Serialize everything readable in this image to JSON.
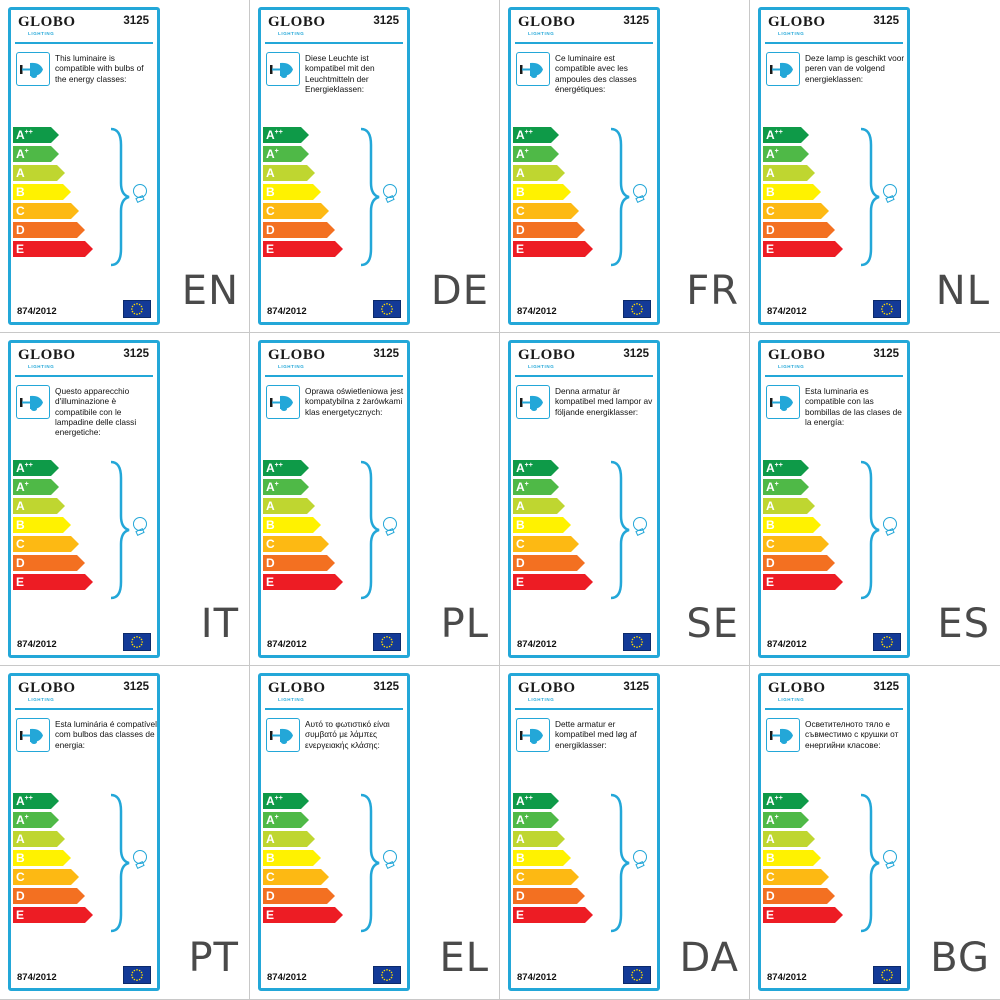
{
  "brand": {
    "name": "GLOBO",
    "sub": "LIGHTING"
  },
  "model": "3125",
  "regulation": "874/2012",
  "classes": [
    {
      "letter": "A",
      "sup": "++",
      "color": "#0e9a48"
    },
    {
      "letter": "A",
      "sup": "+",
      "color": "#4fb947"
    },
    {
      "letter": "A",
      "sup": "",
      "color": "#bfd630"
    },
    {
      "letter": "B",
      "sup": "",
      "color": "#fff200"
    },
    {
      "letter": "C",
      "sup": "",
      "color": "#fdb913"
    },
    {
      "letter": "D",
      "sup": "",
      "color": "#f37021"
    },
    {
      "letter": "E",
      "sup": "",
      "color": "#ed1c24"
    }
  ],
  "accent_color": "#23a7d8",
  "labels": [
    {
      "lang": "EN",
      "text": "This luminaire is compatible with bulbs of the energy classes:"
    },
    {
      "lang": "DE",
      "text": "Diese Leuchte ist kompatibel mit den Leuchtmitteln der Energieklassen:"
    },
    {
      "lang": "FR",
      "text": "Ce luminaire est compatible avec les ampoules des classes énergétiques:"
    },
    {
      "lang": "NL",
      "text": "Deze lamp is geschikt voor peren van de volgend energieklassen:"
    },
    {
      "lang": "IT",
      "text": "Questo apparecchio d'illuminazione è compatibile con le lampadine delle classi energetiche:"
    },
    {
      "lang": "PL",
      "text": "Oprawa oświetleniowa jest kompatybilna z żarówkami klas energetycznych:"
    },
    {
      "lang": "SE",
      "text": "Denna armatur är kompatibel med lampor av följande energiklasser:"
    },
    {
      "lang": "ES",
      "text": "Esta luminaria es compatible con las bombillas de las clases de la energía:"
    },
    {
      "lang": "PT",
      "text": "Esta luminária é compatível com bulbos das classes de energia:"
    },
    {
      "lang": "EL",
      "text": "Αυτό το φωτιστικό είναι συμβατό με λάμπες ενεργειακής κλάσης:"
    },
    {
      "lang": "DA",
      "text": "Dette armatur er kompatibel med løg af energiklasser:"
    },
    {
      "lang": "BG",
      "text": "Осветителното тяло е съвместимо с крушки от енергийни класове:"
    }
  ]
}
